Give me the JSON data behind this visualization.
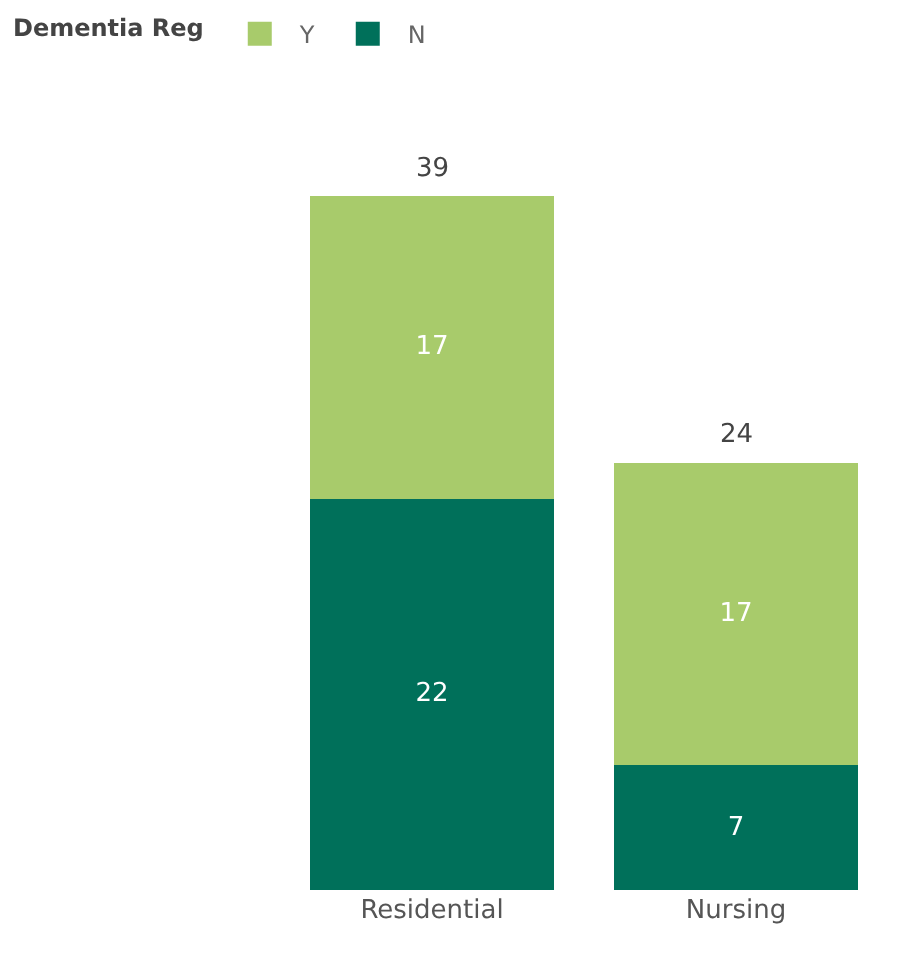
{
  "chart_data": {
    "type": "bar",
    "stacked": true,
    "legend_title": "Dementia Reg",
    "legend": "top left",
    "categories": [
      "Residential",
      "Nursing"
    ],
    "series": [
      {
        "name": "N",
        "color": "#00705a",
        "values": [
          22,
          7
        ]
      },
      {
        "name": "Y",
        "color": "#a8cb6b",
        "values": [
          17,
          17
        ]
      }
    ],
    "totals": [
      "39",
      "24"
    ],
    "data_labels": true,
    "tick_labels": "x",
    "grid": false
  }
}
